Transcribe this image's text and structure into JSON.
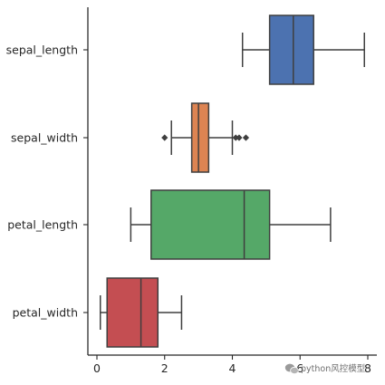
{
  "chart_data": {
    "type": "boxplot",
    "orientation": "horizontal",
    "categories": [
      "sepal_length",
      "sepal_width",
      "petal_length",
      "petal_width"
    ],
    "series": [
      {
        "name": "sepal_length",
        "color": "#4c72b0",
        "whisker_low": 4.3,
        "q1": 5.1,
        "median": 5.8,
        "q3": 6.4,
        "whisker_high": 7.9,
        "outliers": []
      },
      {
        "name": "sepal_width",
        "color": "#dd8452",
        "whisker_low": 2.2,
        "q1": 2.8,
        "median": 3.0,
        "q3": 3.3,
        "whisker_high": 4.0,
        "outliers": [
          2.0,
          4.1,
          4.2,
          4.4
        ]
      },
      {
        "name": "petal_length",
        "color": "#55a868",
        "whisker_low": 1.0,
        "q1": 1.6,
        "median": 4.35,
        "q3": 5.1,
        "whisker_high": 6.9,
        "outliers": []
      },
      {
        "name": "petal_width",
        "color": "#c44e52",
        "whisker_low": 0.1,
        "q1": 0.3,
        "median": 1.3,
        "q3": 1.8,
        "whisker_high": 2.5,
        "outliers": []
      }
    ],
    "x_ticks": [
      0,
      2,
      4,
      6,
      8
    ],
    "xlim": [
      -0.4,
      8.3
    ],
    "title": "",
    "xlabel": "",
    "ylabel": "",
    "grid": false,
    "legend": "none"
  },
  "watermark": {
    "text": "python风控模型",
    "icon": "wechat-icon"
  }
}
